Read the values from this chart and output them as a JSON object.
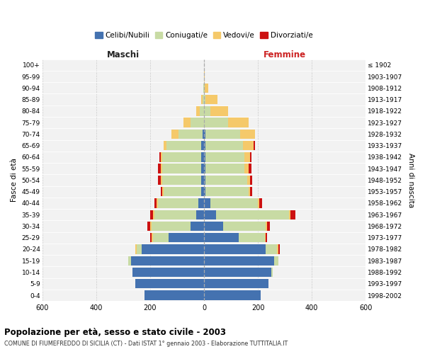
{
  "age_groups": [
    "0-4",
    "5-9",
    "10-14",
    "15-19",
    "20-24",
    "25-29",
    "30-34",
    "35-39",
    "40-44",
    "45-49",
    "50-54",
    "55-59",
    "60-64",
    "65-69",
    "70-74",
    "75-79",
    "80-84",
    "85-89",
    "90-94",
    "95-99",
    "100+"
  ],
  "birth_years": [
    "1998-2002",
    "1993-1997",
    "1988-1992",
    "1983-1987",
    "1978-1982",
    "1973-1977",
    "1968-1972",
    "1963-1967",
    "1958-1962",
    "1953-1957",
    "1948-1952",
    "1943-1947",
    "1938-1942",
    "1933-1937",
    "1928-1932",
    "1923-1927",
    "1918-1922",
    "1913-1917",
    "1908-1912",
    "1903-1907",
    "≤ 1902"
  ],
  "male_celibi": [
    220,
    255,
    265,
    270,
    230,
    130,
    50,
    30,
    20,
    10,
    10,
    10,
    10,
    10,
    5,
    0,
    0,
    0,
    0,
    0,
    0
  ],
  "male_coniugati": [
    0,
    0,
    0,
    10,
    20,
    60,
    145,
    155,
    150,
    140,
    145,
    145,
    145,
    130,
    90,
    50,
    15,
    5,
    2,
    0,
    0
  ],
  "male_vedovi": [
    0,
    0,
    0,
    0,
    5,
    5,
    5,
    5,
    5,
    5,
    5,
    5,
    5,
    10,
    25,
    25,
    15,
    5,
    0,
    0,
    0
  ],
  "male_divorziati": [
    0,
    0,
    0,
    0,
    0,
    5,
    10,
    10,
    10,
    5,
    10,
    10,
    5,
    0,
    0,
    0,
    0,
    0,
    0,
    0,
    0
  ],
  "female_nubili": [
    210,
    240,
    250,
    260,
    230,
    130,
    70,
    45,
    25,
    5,
    5,
    5,
    5,
    5,
    5,
    0,
    0,
    0,
    0,
    0,
    0
  ],
  "female_coniugate": [
    0,
    0,
    5,
    15,
    40,
    95,
    160,
    270,
    175,
    160,
    155,
    145,
    145,
    140,
    130,
    90,
    25,
    5,
    2,
    0,
    0
  ],
  "female_vedove": [
    0,
    0,
    0,
    0,
    5,
    5,
    5,
    5,
    5,
    5,
    10,
    15,
    20,
    40,
    55,
    75,
    65,
    45,
    15,
    2,
    0
  ],
  "female_divorziate": [
    0,
    0,
    0,
    0,
    5,
    5,
    10,
    20,
    10,
    10,
    10,
    10,
    5,
    5,
    0,
    0,
    0,
    0,
    0,
    0,
    0
  ],
  "colors": {
    "celibi": "#4472b0",
    "coniugati": "#c8dba4",
    "vedovi": "#f5c96a",
    "divorziati": "#cc1111"
  },
  "xlim": 600,
  "title": "Popolazione per età, sesso e stato civile - 2003",
  "subtitle": "COMUNE DI FIUMEFREDDO DI SICILIA (CT) - Dati ISTAT 1° gennaio 2003 - Elaborazione TUTTITALIA.IT",
  "ylabel_left": "Fasce di età",
  "ylabel_right": "Anni di nascita",
  "label_maschi": "Maschi",
  "label_femmine": "Femmine",
  "legend_labels": [
    "Celibi/Nubili",
    "Coniugati/e",
    "Vedovi/e",
    "Divorziati/e"
  ],
  "xticks": [
    -600,
    -400,
    -200,
    0,
    200,
    400,
    600
  ]
}
